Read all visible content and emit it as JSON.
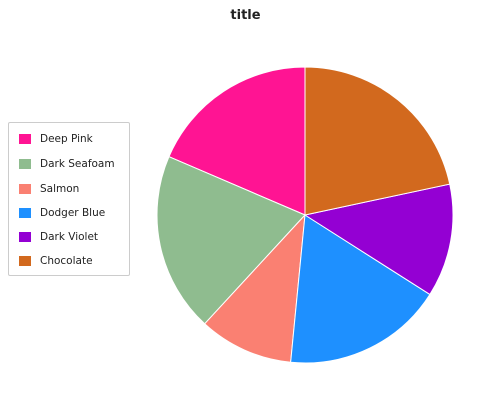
{
  "chart_data": {
    "type": "pie",
    "title": "title",
    "categories": [
      "Deep Pink",
      "Dark Seafoam",
      "Salmon",
      "Dodger Blue",
      "Dark Violet",
      "Chocolate"
    ],
    "values": [
      18,
      19,
      10,
      17,
      12,
      21
    ],
    "colors": [
      "#ff1493",
      "#8fbc8f",
      "#fa8072",
      "#1e90ff",
      "#9400d3",
      "#d2691e"
    ],
    "start_angle_deg": 90,
    "direction": "counterclockwise",
    "legend_placement": "left"
  }
}
